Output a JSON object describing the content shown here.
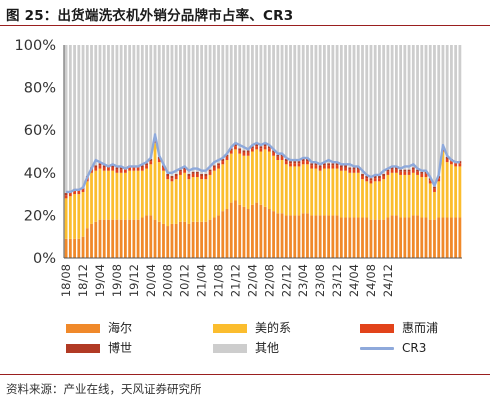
{
  "figure": {
    "title": "图 25：出货端洗衣机外销分品牌市占率、CR3",
    "source": "资料来源：产业在线，天风证券研究所"
  },
  "legend": [
    {
      "label": "海尔",
      "color": "#f0892a",
      "kind": "box"
    },
    {
      "label": "美的系",
      "color": "#fbbd2e",
      "kind": "box"
    },
    {
      "label": "惠而浦",
      "color": "#e2431a",
      "kind": "box"
    },
    {
      "label": "博世",
      "color": "#b13a24",
      "kind": "box"
    },
    {
      "label": "其他",
      "color": "#cdcdcd",
      "kind": "box"
    },
    {
      "label": "CR3",
      "color": "#8ea9db",
      "kind": "line"
    }
  ],
  "chart_data": {
    "type": "bar",
    "stacked": true,
    "ylim": [
      0,
      100
    ],
    "y_ticks": [
      "0%",
      "20%",
      "40%",
      "60%",
      "80%",
      "100%"
    ],
    "x_tick_labels": [
      "18/08",
      "18/12",
      "19/04",
      "19/08",
      "19/12",
      "20/04",
      "20/08",
      "20/12",
      "21/04",
      "21/08",
      "21/12",
      "22/04",
      "22/08",
      "22/12",
      "23/04",
      "23/08",
      "23/12",
      "24/04",
      "24/08",
      "24/12"
    ],
    "x_tick_every": 4,
    "grid": false,
    "legend_position": "bottom",
    "series": [
      {
        "name": "海尔",
        "color": "#f0892a",
        "values": [
          9,
          9,
          9,
          9,
          10,
          14,
          16,
          17,
          18,
          18,
          18,
          18,
          18,
          18,
          18,
          18,
          18,
          18,
          19,
          20,
          20,
          18,
          17,
          16,
          15,
          16,
          16,
          17,
          17,
          16,
          17,
          17,
          17,
          17,
          18,
          19,
          20,
          22,
          23,
          26,
          27,
          25,
          24,
          23,
          25,
          26,
          25,
          24,
          23,
          22,
          21,
          21,
          20,
          20,
          20,
          20,
          21,
          21,
          20,
          20,
          20,
          20,
          20,
          20,
          20,
          19,
          19,
          19,
          19,
          19,
          19,
          19,
          18,
          18,
          18,
          18,
          19,
          20,
          20,
          19,
          19,
          19,
          20,
          20,
          19,
          19,
          18,
          18,
          19,
          19,
          19,
          19,
          19,
          19
        ]
      },
      {
        "name": "美的系",
        "color": "#fbbd2e",
        "values": [
          19,
          20,
          21,
          21,
          21,
          22,
          24,
          24,
          24,
          23,
          23,
          23,
          22,
          22,
          22,
          23,
          23,
          23,
          22,
          22,
          24,
          36,
          28,
          25,
          22,
          20,
          21,
          22,
          23,
          21,
          21,
          21,
          20,
          20,
          21,
          22,
          22,
          22,
          23,
          23,
          24,
          24,
          24,
          25,
          25,
          25,
          25,
          27,
          27,
          26,
          25,
          25,
          24,
          23,
          23,
          23,
          23,
          23,
          22,
          22,
          21,
          22,
          22,
          22,
          22,
          22,
          22,
          21,
          21,
          21,
          18,
          17,
          17,
          18,
          18,
          19,
          20,
          20,
          20,
          20,
          20,
          20,
          20,
          19,
          19,
          19,
          17,
          13,
          17,
          31,
          26,
          25,
          24,
          24
        ]
      },
      {
        "name": "惠而浦",
        "color": "#e2431a",
        "values": [
          1.5,
          1.5,
          1.5,
          1.5,
          1.5,
          1.5,
          1.5,
          1.5,
          1.5,
          1.5,
          1.5,
          1.5,
          1.5,
          1.5,
          1.5,
          1.5,
          1.5,
          1.5,
          1.5,
          1.5,
          1.5,
          1.5,
          1.5,
          1.5,
          1.5,
          1.5,
          1.5,
          1.5,
          1.5,
          1.5,
          1.5,
          1.5,
          1.5,
          1.5,
          1.5,
          1.5,
          1.5,
          1.5,
          1.5,
          1.5,
          1.5,
          1.5,
          1.5,
          1.5,
          1.5,
          1.5,
          1.5,
          1.5,
          1.5,
          1.5,
          1.5,
          1.5,
          1.5,
          1.5,
          1.5,
          1.5,
          1.5,
          1.5,
          1.5,
          1.5,
          1.5,
          1.5,
          1.5,
          1.5,
          1.5,
          1.5,
          1.5,
          1.5,
          1.5,
          1.5,
          1.5,
          1.5,
          1.5,
          1.5,
          1.5,
          1.5,
          1.5,
          1.5,
          1.5,
          1.5,
          1.5,
          1.5,
          1.5,
          1.5,
          1.5,
          1.5,
          1.5,
          1.5,
          1.5,
          1.5,
          1.5,
          1.5,
          1.5,
          1.5
        ]
      },
      {
        "name": "博世",
        "color": "#b13a24",
        "values": [
          1,
          1,
          1,
          1,
          1,
          1,
          1,
          1,
          1,
          1,
          1,
          1,
          1,
          1,
          1,
          1,
          1,
          1,
          1,
          1,
          1,
          1,
          1,
          1,
          1,
          1,
          1,
          1,
          1,
          1,
          1,
          1,
          1,
          1,
          1,
          1,
          1,
          1,
          1,
          1,
          1,
          1,
          1,
          1,
          1,
          1,
          1,
          1,
          1,
          1,
          1,
          1,
          1,
          1,
          1,
          1,
          1,
          1,
          1,
          1,
          1,
          1,
          1,
          1,
          1,
          1,
          1,
          1,
          1,
          1,
          1,
          1,
          1,
          1,
          1,
          1,
          1,
          1,
          1,
          1,
          1,
          1,
          1,
          1,
          1,
          1,
          1,
          1,
          1,
          1,
          1,
          1,
          1,
          1
        ]
      },
      {
        "name": "其他",
        "color": "#cdcdcd",
        "values": "remainder-to-100"
      },
      {
        "name": "CR3",
        "color": "#8ea9db",
        "type": "line",
        "values": [
          31,
          31,
          32,
          32,
          33,
          38,
          42,
          46,
          45,
          44,
          43,
          44,
          43,
          43,
          42,
          43,
          43,
          43,
          44,
          45,
          47,
          58,
          48,
          44,
          40,
          40,
          41,
          42,
          43,
          41,
          42,
          42,
          41,
          41,
          43,
          45,
          46,
          47,
          49,
          52,
          54,
          53,
          52,
          51,
          53,
          54,
          53,
          54,
          53,
          51,
          49,
          49,
          47,
          46,
          46,
          46,
          47,
          47,
          45,
          45,
          44,
          45,
          46,
          45,
          45,
          44,
          44,
          44,
          43,
          43,
          41,
          39,
          38,
          39,
          39,
          41,
          42,
          43,
          43,
          42,
          43,
          43,
          44,
          42,
          41,
          41,
          38,
          34,
          39,
          53,
          48,
          46,
          45,
          45
        ]
      }
    ]
  }
}
